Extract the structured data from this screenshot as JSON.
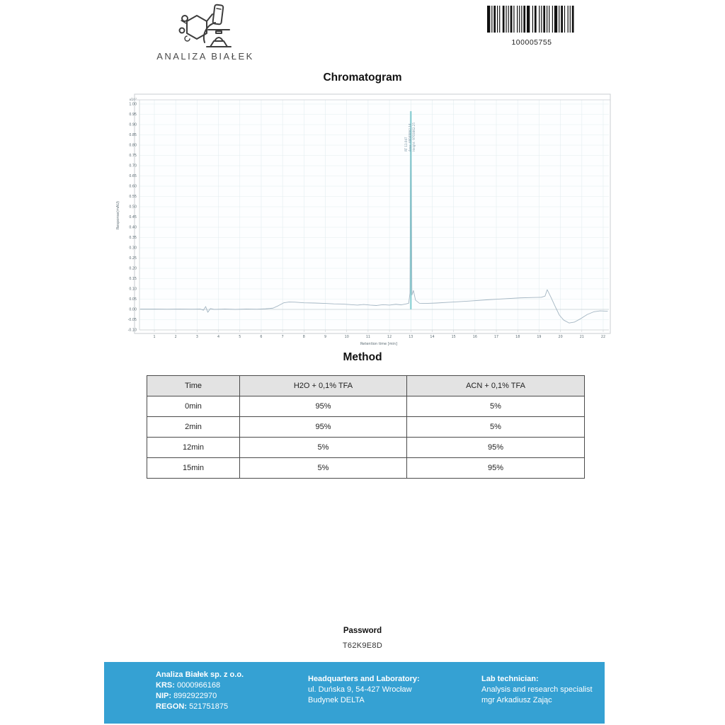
{
  "header": {
    "logo_text": "ANALIZA BIAŁEK",
    "barcode_number": "100005755",
    "barcode_pattern": [
      3,
      1,
      1,
      1,
      2,
      1,
      1,
      1,
      1,
      2,
      2,
      1,
      1,
      1,
      1,
      1,
      2,
      1,
      1,
      2,
      1,
      1,
      1,
      1,
      1,
      1,
      2,
      1,
      3,
      2,
      1,
      1,
      2,
      2,
      1,
      1,
      1,
      1,
      2,
      1,
      1,
      1,
      1,
      2,
      1,
      1,
      3,
      1,
      1,
      1,
      2,
      1,
      1,
      2,
      1,
      1,
      1,
      1,
      2,
      2
    ]
  },
  "chromatogram": {
    "title": "Chromatogram"
  },
  "chart_data": {
    "type": "line",
    "title": "Chromatogram",
    "xlabel": "Retention time [min]",
    "ylabel": "Response(mAU)",
    "y_scale_label": "x10⁷",
    "xlim": [
      0.3,
      22.26
    ],
    "ylim": [
      -0.112,
      1.021
    ],
    "grid": true,
    "x_ticks": [
      "1",
      "2",
      "3",
      "4",
      "5",
      "6",
      "7",
      "8",
      "9",
      "10",
      "11",
      "12",
      "13",
      "14",
      "15",
      "16",
      "17",
      "18",
      "19",
      "20",
      "21",
      "22"
    ],
    "y_ticks": [
      "1.00",
      "0.95",
      "0.90",
      "0.85",
      "0.80",
      "0.75",
      "0.70",
      "0.65",
      "0.60",
      "0.55",
      "0.50",
      "0.45",
      "0.40",
      "0.35",
      "0.30",
      "0.25",
      "0.20",
      "0.15",
      "0.10",
      "0.05",
      "0.00",
      "-0.05",
      "-0.10"
    ],
    "series": [
      {
        "name": "signal",
        "points": [
          [
            0.35,
            0.002
          ],
          [
            1,
            0.002
          ],
          [
            1.6,
            0.001
          ],
          [
            2.2,
            0.002
          ],
          [
            2.8,
            0.001
          ],
          [
            3.15,
            0.002
          ],
          [
            3.3,
            -0.004
          ],
          [
            3.4,
            0.014
          ],
          [
            3.5,
            -0.014
          ],
          [
            3.62,
            0.004
          ],
          [
            3.8,
            0.0
          ],
          [
            4.3,
            0.002
          ],
          [
            4.8,
            0.0
          ],
          [
            5.3,
            0.002
          ],
          [
            5.8,
            0.001
          ],
          [
            6.2,
            0.003
          ],
          [
            6.55,
            0.006
          ],
          [
            6.8,
            0.018
          ],
          [
            7.05,
            0.032
          ],
          [
            7.3,
            0.036
          ],
          [
            7.6,
            0.035
          ],
          [
            8,
            0.032
          ],
          [
            8.5,
            0.031
          ],
          [
            9,
            0.029
          ],
          [
            9.4,
            0.027
          ],
          [
            9.8,
            0.026
          ],
          [
            10.2,
            0.023
          ],
          [
            10.5,
            0.021
          ],
          [
            10.8,
            0.024
          ],
          [
            11.1,
            0.021
          ],
          [
            11.4,
            0.019
          ],
          [
            11.7,
            0.023
          ],
          [
            12,
            0.021
          ],
          [
            12.3,
            0.025
          ],
          [
            12.55,
            0.022
          ],
          [
            12.75,
            0.026
          ],
          [
            12.9,
            0.03
          ],
          [
            12.96,
            0.08
          ],
          [
            13.0,
            0.965
          ],
          [
            13.05,
            0.07
          ],
          [
            13.12,
            0.092
          ],
          [
            13.22,
            0.045
          ],
          [
            13.4,
            0.03
          ],
          [
            13.7,
            0.029
          ],
          [
            14.2,
            0.031
          ],
          [
            15,
            0.036
          ],
          [
            15.8,
            0.041
          ],
          [
            16.6,
            0.047
          ],
          [
            17.4,
            0.052
          ],
          [
            18.1,
            0.056
          ],
          [
            18.7,
            0.058
          ],
          [
            19.1,
            0.059
          ],
          [
            19.28,
            0.065
          ],
          [
            19.38,
            0.096
          ],
          [
            19.55,
            0.06
          ],
          [
            19.75,
            0.015
          ],
          [
            19.95,
            -0.028
          ],
          [
            20.15,
            -0.052
          ],
          [
            20.4,
            -0.066
          ],
          [
            20.65,
            -0.062
          ],
          [
            20.95,
            -0.045
          ],
          [
            21.25,
            -0.025
          ],
          [
            21.55,
            -0.012
          ],
          [
            21.85,
            -0.007
          ],
          [
            22.2,
            -0.009
          ]
        ]
      }
    ],
    "peak": {
      "rt": 13.0,
      "height": 0.965,
      "labels": [
        "RT 13.047",
        "Area: 68049862.14",
        "Height: 9703862.25"
      ]
    }
  },
  "method": {
    "title": "Method",
    "table": {
      "headers": [
        "Time",
        "H2O + 0,1% TFA",
        "ACN + 0,1% TFA"
      ],
      "rows": [
        [
          "0min",
          "95%",
          "5%"
        ],
        [
          "2min",
          "95%",
          "5%"
        ],
        [
          "12min",
          "5%",
          "95%"
        ],
        [
          "15min",
          "5%",
          "95%"
        ]
      ]
    }
  },
  "password": {
    "label": "Password",
    "value": "T62K9E8D"
  },
  "footer": {
    "company": {
      "name": "Analiza Białek sp. z o.o.",
      "krs_label": "KRS:",
      "krs": "0000966168",
      "nip_label": "NIP:",
      "nip": "8992922970",
      "regon_label": "REGON:",
      "regon": "521751875"
    },
    "hq": {
      "label": "Headquarters and Laboratory:",
      "line1": "ul. Duńska 9, 54-427 Wrocław",
      "line2": "Budynek DELTA"
    },
    "tech": {
      "label": "Lab technician:",
      "line1": "Analysis and research specialist",
      "line2": "mgr Arkadiusz Zając"
    }
  },
  "colors": {
    "footer_bg": "#35a1d3",
    "curve": "#a3b5c2",
    "peak": "#63c4c9",
    "peak_halo": "#cfe9eb",
    "grid": "#e3edf0",
    "grid_zero": "#c2cdd2",
    "frame": "#c9ced1",
    "tick_text": "#5a6a72",
    "annotation": "#7f9aa8"
  }
}
